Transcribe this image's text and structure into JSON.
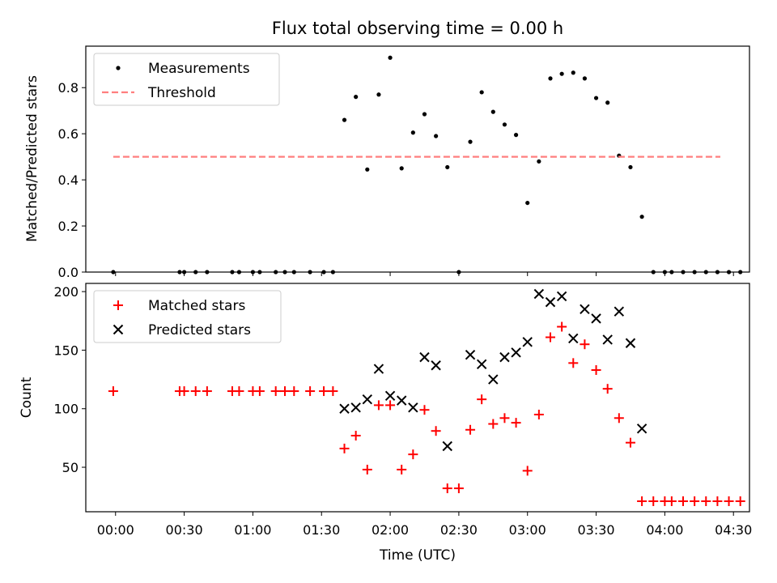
{
  "title": "Flux total observing time = 0.00 h",
  "xlabel": "Time (UTC)",
  "x_ticks": [
    "00:00",
    "00:30",
    "01:00",
    "01:30",
    "02:00",
    "02:30",
    "03:00",
    "03:30",
    "04:00",
    "04:30"
  ],
  "chart_data": [
    {
      "type": "scatter",
      "ylabel": "Matched/Predicted stars",
      "xlim": [
        "23:47",
        "04:37"
      ],
      "ylim": [
        0,
        0.98
      ],
      "y_ticks": [
        "0.0",
        "0.2",
        "0.4",
        "0.6",
        "0.8"
      ],
      "y_tick_values": [
        0,
        0.2,
        0.4,
        0.6,
        0.8
      ],
      "legend_position": "upper-left",
      "series": [
        {
          "name": "Measurements",
          "kind": "scatter-dot",
          "color": "#000000",
          "points": [
            [
              "23:59",
              0
            ],
            [
              "00:28",
              0
            ],
            [
              "00:30",
              0
            ],
            [
              "00:35",
              0
            ],
            [
              "00:40",
              0
            ],
            [
              "00:51",
              0
            ],
            [
              "00:54",
              0
            ],
            [
              "01:00",
              0
            ],
            [
              "01:03",
              0
            ],
            [
              "01:10",
              0
            ],
            [
              "01:14",
              0
            ],
            [
              "01:18",
              0
            ],
            [
              "01:25",
              0
            ],
            [
              "01:31",
              0
            ],
            [
              "01:35",
              0
            ],
            [
              "01:40",
              0.66
            ],
            [
              "01:45",
              0.76
            ],
            [
              "01:50",
              0.445
            ],
            [
              "01:55",
              0.77
            ],
            [
              "02:00",
              0.93
            ],
            [
              "02:05",
              0.45
            ],
            [
              "02:10",
              0.605
            ],
            [
              "02:15",
              0.685
            ],
            [
              "02:20",
              0.59
            ],
            [
              "02:25",
              0.455
            ],
            [
              "02:30",
              0
            ],
            [
              "02:35",
              0.565
            ],
            [
              "02:40",
              0.78
            ],
            [
              "02:45",
              0.695
            ],
            [
              "02:50",
              0.64
            ],
            [
              "02:55",
              0.595
            ],
            [
              "03:00",
              0.3
            ],
            [
              "03:05",
              0.48
            ],
            [
              "03:10",
              0.84
            ],
            [
              "03:15",
              0.86
            ],
            [
              "03:20",
              0.865
            ],
            [
              "03:25",
              0.84
            ],
            [
              "03:30",
              0.755
            ],
            [
              "03:35",
              0.735
            ],
            [
              "03:40",
              0.505
            ],
            [
              "03:45",
              0.455
            ],
            [
              "03:50",
              0.24
            ],
            [
              "03:55",
              0
            ],
            [
              "04:00",
              0
            ],
            [
              "04:03",
              0
            ],
            [
              "04:08",
              0
            ],
            [
              "04:13",
              0
            ],
            [
              "04:18",
              0
            ],
            [
              "04:23",
              0
            ],
            [
              "04:28",
              0
            ],
            [
              "04:33",
              0
            ]
          ]
        },
        {
          "name": "Threshold",
          "kind": "dashed-line",
          "color": "#ff7f7f",
          "points": [
            [
              "23:59",
              0.5
            ],
            [
              "04:37",
              0.5
            ]
          ]
        }
      ]
    },
    {
      "type": "scatter",
      "ylabel": "Count",
      "xlim": [
        "23:47",
        "04:37"
      ],
      "ylim": [
        12,
        207
      ],
      "y_ticks": [
        "50",
        "100",
        "150",
        "200"
      ],
      "y_tick_values": [
        50,
        100,
        150,
        200
      ],
      "legend_position": "upper-left",
      "series": [
        {
          "name": "Matched stars",
          "kind": "plus",
          "color": "#ff0000",
          "points": [
            [
              "23:59",
              115
            ],
            [
              "00:28",
              115
            ],
            [
              "00:30",
              115
            ],
            [
              "00:35",
              115
            ],
            [
              "00:40",
              115
            ],
            [
              "00:51",
              115
            ],
            [
              "00:54",
              115
            ],
            [
              "01:00",
              115
            ],
            [
              "01:03",
              115
            ],
            [
              "01:10",
              115
            ],
            [
              "01:14",
              115
            ],
            [
              "01:18",
              115
            ],
            [
              "01:25",
              115
            ],
            [
              "01:31",
              115
            ],
            [
              "01:35",
              115
            ],
            [
              "01:40",
              66
            ],
            [
              "01:45",
              77
            ],
            [
              "01:50",
              48
            ],
            [
              "01:55",
              103
            ],
            [
              "02:00",
              103
            ],
            [
              "02:05",
              48
            ],
            [
              "02:10",
              61
            ],
            [
              "02:15",
              99
            ],
            [
              "02:20",
              81
            ],
            [
              "02:25",
              32
            ],
            [
              "02:30",
              32
            ],
            [
              "02:35",
              82
            ],
            [
              "02:40",
              108
            ],
            [
              "02:45",
              87
            ],
            [
              "02:50",
              92
            ],
            [
              "02:55",
              88
            ],
            [
              "03:00",
              47
            ],
            [
              "03:05",
              95
            ],
            [
              "03:10",
              161
            ],
            [
              "03:15",
              170
            ],
            [
              "03:20",
              139
            ],
            [
              "03:25",
              155
            ],
            [
              "03:30",
              133
            ],
            [
              "03:35",
              117
            ],
            [
              "03:40",
              92
            ],
            [
              "03:45",
              71
            ],
            [
              "03:50",
              21
            ],
            [
              "03:55",
              21
            ],
            [
              "04:00",
              21
            ],
            [
              "04:03",
              21
            ],
            [
              "04:08",
              21
            ],
            [
              "04:13",
              21
            ],
            [
              "04:18",
              21
            ],
            [
              "04:23",
              21
            ],
            [
              "04:28",
              21
            ],
            [
              "04:33",
              21
            ]
          ]
        },
        {
          "name": "Predicted stars",
          "kind": "cross",
          "color": "#000000",
          "points": [
            [
              "01:40",
              100
            ],
            [
              "01:45",
              101
            ],
            [
              "01:50",
              108
            ],
            [
              "01:55",
              134
            ],
            [
              "02:00",
              111
            ],
            [
              "02:05",
              107
            ],
            [
              "02:10",
              101
            ],
            [
              "02:15",
              144
            ],
            [
              "02:20",
              137
            ],
            [
              "02:25",
              68
            ],
            [
              "02:35",
              146
            ],
            [
              "02:40",
              138
            ],
            [
              "02:45",
              125
            ],
            [
              "02:50",
              144
            ],
            [
              "02:55",
              148
            ],
            [
              "03:00",
              157
            ],
            [
              "03:05",
              198
            ],
            [
              "03:10",
              191
            ],
            [
              "03:15",
              196
            ],
            [
              "03:20",
              160
            ],
            [
              "03:25",
              185
            ],
            [
              "03:30",
              177
            ],
            [
              "03:35",
              159
            ],
            [
              "03:40",
              183
            ],
            [
              "03:45",
              156
            ],
            [
              "03:50",
              83
            ]
          ]
        }
      ]
    }
  ]
}
